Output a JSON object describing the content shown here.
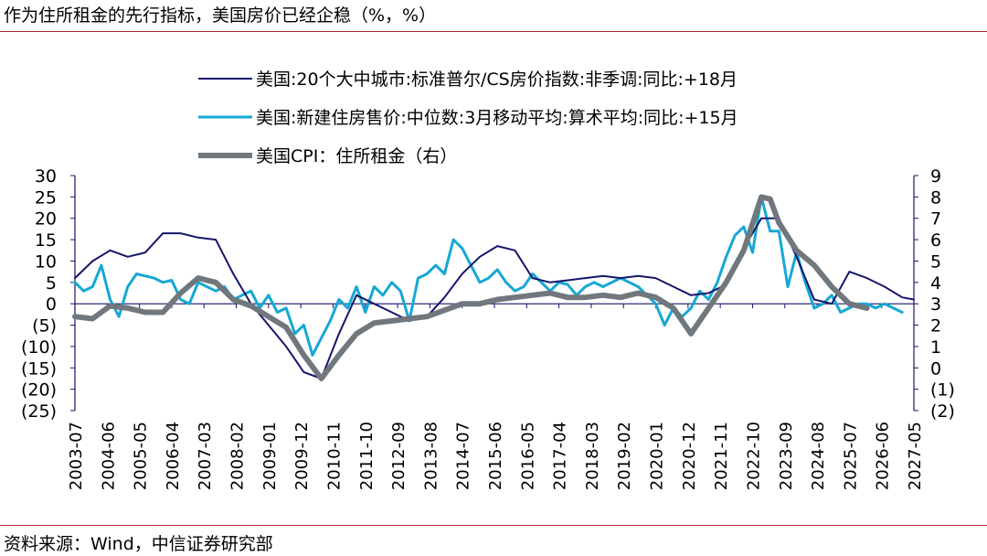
{
  "title": "作为住所租金的先行指标，美国房价已经企稳（%，%）",
  "source": "资料来源：Wind，中信证券研究部",
  "colors": {
    "series1": "#15166b",
    "series2": "#15a8d4",
    "series3": "#70777d",
    "axis": "#15166b",
    "rule": "#b3272d"
  },
  "chart_data": {
    "type": "line",
    "title": "作为住所租金的先行指标，美国房价已经企稳（%，%）",
    "legend_position": "top",
    "grid": false,
    "x_tick_labels": [
      "2003-07",
      "2004-06",
      "2005-05",
      "2006-04",
      "2007-03",
      "2008-02",
      "2009-01",
      "2009-12",
      "2010-11",
      "2011-10",
      "2012-09",
      "2013-08",
      "2014-07",
      "2015-06",
      "2016-05",
      "2017-04",
      "2018-03",
      "2019-02",
      "2020-01",
      "2020-12",
      "2021-11",
      "2022-10",
      "2023-09",
      "2024-08",
      "2025-07",
      "2026-06",
      "2027-05"
    ],
    "x_range": [
      "2003-07",
      "2027-05"
    ],
    "y_left": {
      "range": [
        -25,
        30
      ],
      "tick_labels": [
        "30",
        "25",
        "20",
        "15",
        "10",
        "5",
        "0",
        "(5)",
        "(10)",
        "(15)",
        "(20)",
        "(25)"
      ]
    },
    "y_right": {
      "range": [
        -2,
        9
      ],
      "tick_labels": [
        "9",
        "8",
        "7",
        "6",
        "5",
        "4",
        "3",
        "2",
        "1",
        "0",
        "(1)",
        "(2)"
      ]
    },
    "series": [
      {
        "name": "美国:20个大中城市:标准普尔/CS房价指数:非季调:同比:+18月",
        "axis": "left",
        "points": [
          [
            "2003-07",
            6
          ],
          [
            "2004-01",
            10
          ],
          [
            "2004-07",
            12.5
          ],
          [
            "2005-01",
            11
          ],
          [
            "2005-07",
            12
          ],
          [
            "2006-01",
            16.5
          ],
          [
            "2006-07",
            16.5
          ],
          [
            "2007-01",
            15.5
          ],
          [
            "2007-07",
            15
          ],
          [
            "2008-01",
            7
          ],
          [
            "2008-07",
            0
          ],
          [
            "2009-01",
            -5
          ],
          [
            "2009-07",
            -10
          ],
          [
            "2010-01",
            -16
          ],
          [
            "2010-07",
            -17.5
          ],
          [
            "2011-01",
            -7
          ],
          [
            "2011-07",
            2
          ],
          [
            "2012-01",
            0
          ],
          [
            "2012-07",
            -2
          ],
          [
            "2013-01",
            -4
          ],
          [
            "2013-07",
            -3
          ],
          [
            "2014-01",
            1.5
          ],
          [
            "2014-07",
            7
          ],
          [
            "2015-01",
            11
          ],
          [
            "2015-07",
            13.5
          ],
          [
            "2016-01",
            12.5
          ],
          [
            "2016-07",
            6
          ],
          [
            "2017-01",
            5
          ],
          [
            "2017-07",
            5.5
          ],
          [
            "2018-01",
            6
          ],
          [
            "2018-07",
            6.5
          ],
          [
            "2019-01",
            6
          ],
          [
            "2019-07",
            6.5
          ],
          [
            "2020-01",
            6
          ],
          [
            "2020-07",
            4
          ],
          [
            "2021-01",
            2
          ],
          [
            "2021-07",
            2.5
          ],
          [
            "2022-01",
            4.5
          ],
          [
            "2022-07",
            13
          ],
          [
            "2023-01",
            20
          ],
          [
            "2023-07",
            20
          ],
          [
            "2024-01",
            11
          ],
          [
            "2024-07",
            1
          ],
          [
            "2025-01",
            0
          ],
          [
            "2025-07",
            7.5
          ],
          [
            "2026-01",
            6
          ],
          [
            "2026-07",
            4
          ],
          [
            "2027-01",
            1.5
          ],
          [
            "2027-05",
            1
          ]
        ]
      },
      {
        "name": "美国:新建住房售价:中位数:3月移动平均:算术平均:同比:+15月",
        "axis": "left",
        "points": [
          [
            "2003-07",
            5
          ],
          [
            "2003-10",
            3
          ],
          [
            "2004-01",
            4
          ],
          [
            "2004-04",
            9
          ],
          [
            "2004-07",
            1
          ],
          [
            "2004-10",
            -3
          ],
          [
            "2005-01",
            4
          ],
          [
            "2005-04",
            7
          ],
          [
            "2005-07",
            6.5
          ],
          [
            "2005-10",
            6
          ],
          [
            "2006-01",
            5
          ],
          [
            "2006-04",
            5.5
          ],
          [
            "2006-07",
            1
          ],
          [
            "2006-10",
            0
          ],
          [
            "2007-01",
            5
          ],
          [
            "2007-04",
            4
          ],
          [
            "2007-07",
            3
          ],
          [
            "2007-10",
            4
          ],
          [
            "2008-01",
            1
          ],
          [
            "2008-04",
            2
          ],
          [
            "2008-07",
            3
          ],
          [
            "2008-10",
            -1
          ],
          [
            "2009-01",
            2
          ],
          [
            "2009-04",
            -2
          ],
          [
            "2009-07",
            -1
          ],
          [
            "2009-10",
            -7
          ],
          [
            "2010-01",
            -5
          ],
          [
            "2010-04",
            -12
          ],
          [
            "2010-07",
            -8
          ],
          [
            "2010-10",
            -4
          ],
          [
            "2011-01",
            1
          ],
          [
            "2011-04",
            -1
          ],
          [
            "2011-07",
            4
          ],
          [
            "2011-10",
            -2
          ],
          [
            "2012-01",
            4
          ],
          [
            "2012-04",
            2
          ],
          [
            "2012-07",
            5
          ],
          [
            "2012-10",
            3
          ],
          [
            "2013-01",
            -4
          ],
          [
            "2013-04",
            6
          ],
          [
            "2013-07",
            7
          ],
          [
            "2013-10",
            9
          ],
          [
            "2014-01",
            7
          ],
          [
            "2014-04",
            15
          ],
          [
            "2014-07",
            13
          ],
          [
            "2014-10",
            9
          ],
          [
            "2015-01",
            5
          ],
          [
            "2015-04",
            6
          ],
          [
            "2015-07",
            8
          ],
          [
            "2015-10",
            5
          ],
          [
            "2016-01",
            3
          ],
          [
            "2016-04",
            4
          ],
          [
            "2016-07",
            7
          ],
          [
            "2016-10",
            5
          ],
          [
            "2017-01",
            3
          ],
          [
            "2017-04",
            5
          ],
          [
            "2017-07",
            4.5
          ],
          [
            "2017-10",
            2
          ],
          [
            "2018-01",
            4
          ],
          [
            "2018-04",
            5
          ],
          [
            "2018-07",
            4
          ],
          [
            "2018-10",
            5
          ],
          [
            "2019-01",
            6
          ],
          [
            "2019-04",
            5
          ],
          [
            "2019-07",
            4
          ],
          [
            "2019-10",
            2
          ],
          [
            "2020-01",
            0
          ],
          [
            "2020-04",
            -5
          ],
          [
            "2020-07",
            -1
          ],
          [
            "2020-10",
            -3
          ],
          [
            "2021-01",
            -1
          ],
          [
            "2021-04",
            3
          ],
          [
            "2021-07",
            1
          ],
          [
            "2021-10",
            5
          ],
          [
            "2022-01",
            11
          ],
          [
            "2022-04",
            16
          ],
          [
            "2022-07",
            18
          ],
          [
            "2022-10",
            12
          ],
          [
            "2023-01",
            25
          ],
          [
            "2023-04",
            17
          ],
          [
            "2023-07",
            17
          ],
          [
            "2023-10",
            4
          ],
          [
            "2024-01",
            12
          ],
          [
            "2024-04",
            5
          ],
          [
            "2024-07",
            -1
          ],
          [
            "2024-10",
            0
          ],
          [
            "2025-01",
            2
          ],
          [
            "2025-04",
            -2
          ],
          [
            "2025-07",
            -1
          ],
          [
            "2025-10",
            0
          ],
          [
            "2026-01",
            0
          ],
          [
            "2026-04",
            -1
          ],
          [
            "2026-07",
            0
          ],
          [
            "2026-10",
            -1
          ],
          [
            "2027-01",
            -2
          ]
        ]
      },
      {
        "name": "美国CPI：住所租金（右）",
        "axis": "right",
        "points": [
          [
            "2003-07",
            2.4
          ],
          [
            "2004-01",
            2.3
          ],
          [
            "2004-07",
            2.9
          ],
          [
            "2005-01",
            2.8
          ],
          [
            "2005-07",
            2.6
          ],
          [
            "2006-01",
            2.6
          ],
          [
            "2006-07",
            3.5
          ],
          [
            "2007-01",
            4.2
          ],
          [
            "2007-07",
            4.0
          ],
          [
            "2008-01",
            3.2
          ],
          [
            "2008-07",
            2.9
          ],
          [
            "2009-01",
            2.4
          ],
          [
            "2009-07",
            1.9
          ],
          [
            "2010-01",
            0.6
          ],
          [
            "2010-07",
            -0.5
          ],
          [
            "2011-01",
            0.6
          ],
          [
            "2011-07",
            1.6
          ],
          [
            "2012-01",
            2.1
          ],
          [
            "2012-07",
            2.2
          ],
          [
            "2013-01",
            2.3
          ],
          [
            "2013-07",
            2.4
          ],
          [
            "2014-01",
            2.7
          ],
          [
            "2014-07",
            3.0
          ],
          [
            "2015-01",
            3.0
          ],
          [
            "2015-07",
            3.2
          ],
          [
            "2016-01",
            3.3
          ],
          [
            "2016-07",
            3.4
          ],
          [
            "2017-01",
            3.5
          ],
          [
            "2017-07",
            3.3
          ],
          [
            "2018-01",
            3.3
          ],
          [
            "2018-07",
            3.4
          ],
          [
            "2019-01",
            3.3
          ],
          [
            "2019-07",
            3.5
          ],
          [
            "2020-01",
            3.3
          ],
          [
            "2020-07",
            2.8
          ],
          [
            "2021-01",
            1.6
          ],
          [
            "2021-07",
            2.8
          ],
          [
            "2022-01",
            4.0
          ],
          [
            "2022-07",
            5.5
          ],
          [
            "2023-01",
            8.0
          ],
          [
            "2023-04",
            7.9
          ],
          [
            "2023-07",
            6.8
          ],
          [
            "2024-01",
            5.5
          ],
          [
            "2024-07",
            4.8
          ],
          [
            "2025-01",
            3.8
          ],
          [
            "2025-07",
            3.0
          ],
          [
            "2026-01",
            2.8
          ]
        ]
      }
    ]
  }
}
